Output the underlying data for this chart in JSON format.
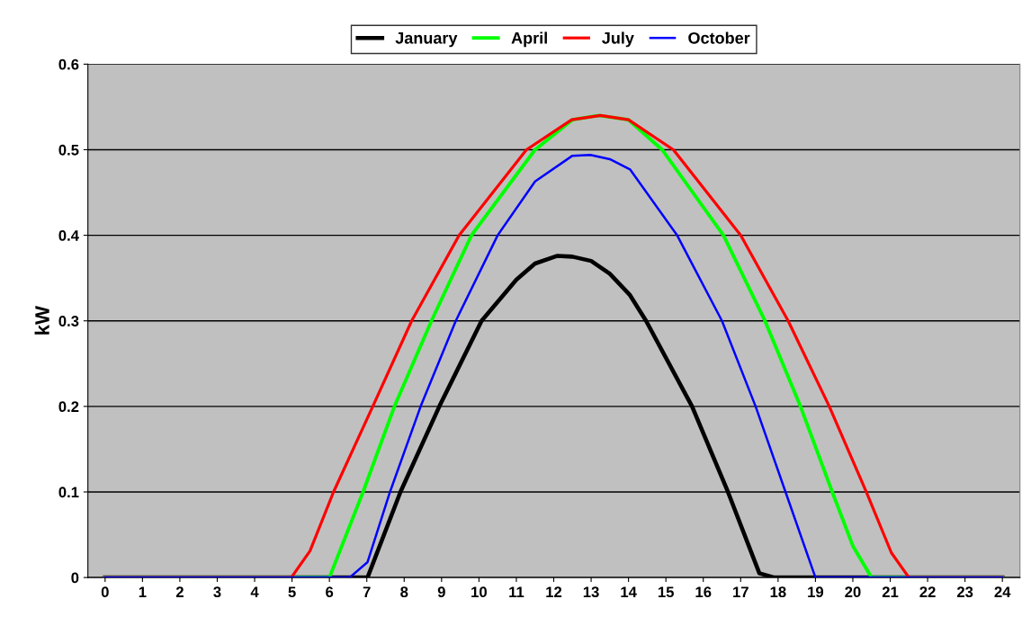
{
  "chart_data": {
    "type": "line",
    "ylabel": "kW",
    "legend": "top",
    "grid": "y",
    "marker": "none",
    "line_style": "solid",
    "xlim": [
      -0.46,
      24.47
    ],
    "ylim": [
      0,
      0.6
    ],
    "xticks": [
      0,
      1,
      2,
      3,
      4,
      5,
      6,
      7,
      8,
      9,
      10,
      11,
      12,
      13,
      14,
      15,
      16,
      17,
      18,
      19,
      20,
      21,
      22,
      23,
      24
    ],
    "yticks": [
      0,
      0.1,
      0.2,
      0.3,
      0.4,
      0.5,
      0.6
    ],
    "series": [
      {
        "name": "January",
        "color": "#000000",
        "x": [
          0,
          7.02,
          7.9,
          8.94,
          10.07,
          11.0,
          11.5,
          12.1,
          12.5,
          13.0,
          13.5,
          14.04,
          14.47,
          15.7,
          16.66,
          17.5,
          17.9,
          24
        ],
        "values": [
          0,
          0,
          0.1,
          0.2,
          0.3,
          0.348,
          0.367,
          0.376,
          0.375,
          0.37,
          0.355,
          0.33,
          0.3,
          0.2,
          0.1,
          0.005,
          0,
          0
        ]
      },
      {
        "name": "April",
        "color": "#00ff00",
        "x": [
          0,
          6.0,
          6.9,
          7.74,
          8.73,
          9.8,
          11.5,
          12.5,
          13.2,
          14.0,
          14.9,
          16.54,
          17.65,
          18.6,
          19.45,
          20.0,
          20.5,
          24
        ],
        "values": [
          0,
          0,
          0.1,
          0.2,
          0.3,
          0.4,
          0.5,
          0.535,
          0.54,
          0.535,
          0.5,
          0.4,
          0.3,
          0.2,
          0.1,
          0.037,
          0,
          0
        ]
      },
      {
        "name": "July",
        "color": "#ff0000",
        "x": [
          0,
          4.98,
          5.48,
          6.11,
          7.16,
          8.2,
          9.47,
          11.27,
          12.48,
          13.25,
          14.0,
          15.2,
          17.0,
          18.27,
          19.37,
          20.36,
          21.03,
          21.5,
          24
        ],
        "values": [
          0,
          0,
          0.031,
          0.1,
          0.2,
          0.3,
          0.4,
          0.5,
          0.535,
          0.54,
          0.535,
          0.5,
          0.4,
          0.3,
          0.2,
          0.1,
          0.029,
          0,
          0
        ]
      },
      {
        "name": "October",
        "color": "#0000ff",
        "x": [
          0,
          6.54,
          7.02,
          7.62,
          8.44,
          9.38,
          10.5,
          11.5,
          12.5,
          12.98,
          13.5,
          14.04,
          15.3,
          16.5,
          17.4,
          18.2,
          19.0,
          24
        ],
        "values": [
          0,
          0,
          0.018,
          0.1,
          0.2,
          0.3,
          0.4,
          0.463,
          0.493,
          0.494,
          0.489,
          0.477,
          0.4,
          0.3,
          0.2,
          0.1,
          0,
          0
        ]
      }
    ]
  }
}
